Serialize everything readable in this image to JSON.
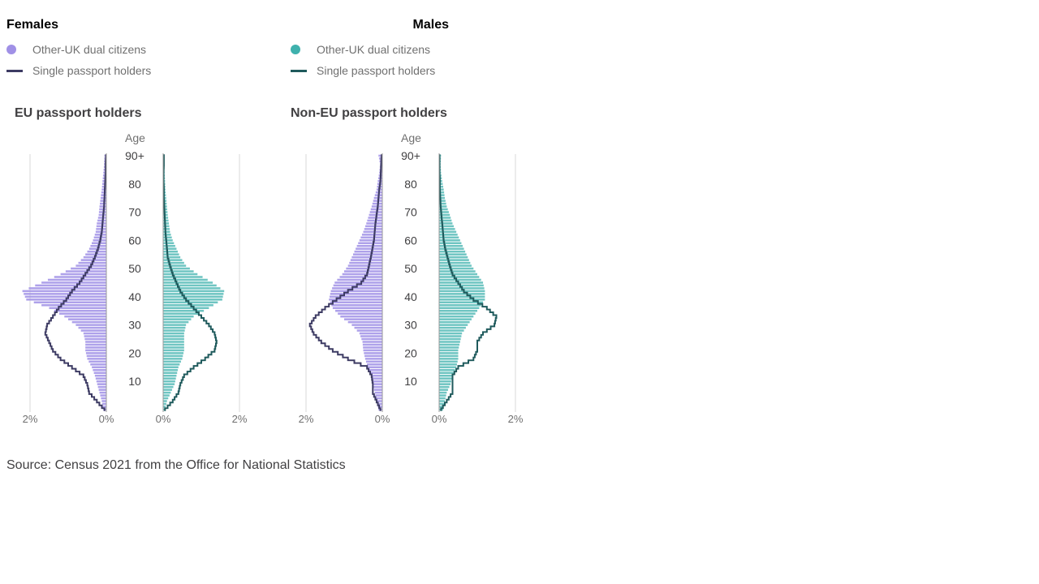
{
  "legend": {
    "females": {
      "title": "Females",
      "dual_label": "Other-UK dual citizens",
      "single_label": "Single passport holders",
      "dual_color": "#a090e6",
      "single_color": "#3d3b63"
    },
    "males": {
      "title": "Males",
      "dual_label": "Other-UK dual citizens",
      "single_label": "Single passport holders",
      "dual_color": "#3fb1ad",
      "single_color": "#1f5a5c"
    }
  },
  "source": "Source: Census 2021 from the Office for National Statistics",
  "chart_data": [
    {
      "type": "bar",
      "title": "EU passport holders",
      "ylabel": "Age",
      "age_ticks": [
        "10",
        "20",
        "30",
        "40",
        "50",
        "60",
        "70",
        "80",
        "90+"
      ],
      "x_ticks": [
        "2%",
        "0%"
      ],
      "x_ticks_right": [
        "0%",
        "2%"
      ],
      "xlim": [
        0,
        2
      ],
      "x": [
        0,
        3,
        6,
        9,
        12,
        15,
        18,
        21,
        24,
        27,
        30,
        33,
        36,
        39,
        42,
        45,
        48,
        51,
        54,
        57,
        60,
        63,
        66,
        69,
        72,
        75,
        78,
        81,
        84,
        87,
        90
      ],
      "series": [
        {
          "name": "Females Other-UK dual citizens",
          "values": [
            0.08,
            0.12,
            0.18,
            0.24,
            0.3,
            0.38,
            0.5,
            0.55,
            0.55,
            0.6,
            0.8,
            1.1,
            1.5,
            2.1,
            2.2,
            1.7,
            1.2,
            0.8,
            0.6,
            0.45,
            0.35,
            0.28,
            0.25,
            0.2,
            0.18,
            0.15,
            0.12,
            0.1,
            0.08,
            0.06,
            0.05
          ]
        },
        {
          "name": "Females Single passport holders",
          "values": [
            0.05,
            0.25,
            0.45,
            0.5,
            0.6,
            0.9,
            1.2,
            1.4,
            1.5,
            1.6,
            1.55,
            1.4,
            1.25,
            1.05,
            0.9,
            0.7,
            0.55,
            0.4,
            0.3,
            0.22,
            0.16,
            0.12,
            0.1,
            0.08,
            0.06,
            0.05,
            0.04,
            0.03,
            0.02,
            0.02,
            0.01
          ]
        },
        {
          "name": "Males Other-UK dual citizens",
          "values": [
            0.05,
            0.1,
            0.2,
            0.3,
            0.35,
            0.4,
            0.5,
            0.55,
            0.55,
            0.55,
            0.6,
            0.8,
            1.2,
            1.55,
            1.6,
            1.3,
            0.9,
            0.6,
            0.45,
            0.35,
            0.25,
            0.18,
            0.15,
            0.12,
            0.1,
            0.08,
            0.06,
            0.05,
            0.04,
            0.03,
            0.02
          ]
        },
        {
          "name": "Males Single passport holders",
          "values": [
            0.05,
            0.25,
            0.4,
            0.45,
            0.55,
            0.8,
            1.1,
            1.35,
            1.4,
            1.35,
            1.2,
            1.0,
            0.8,
            0.6,
            0.45,
            0.35,
            0.25,
            0.18,
            0.12,
            0.1,
            0.08,
            0.06,
            0.05,
            0.04,
            0.03,
            0.02,
            0.02,
            0.01,
            0.01,
            0.02,
            0.02
          ]
        }
      ]
    },
    {
      "type": "bar",
      "title": "Non-EU passport holders",
      "ylabel": "Age",
      "age_ticks": [
        "10",
        "20",
        "30",
        "40",
        "50",
        "60",
        "70",
        "80",
        "90+"
      ],
      "x_ticks": [
        "2%",
        "0%"
      ],
      "x_ticks_right": [
        "0%",
        "2%"
      ],
      "xlim": [
        0,
        2
      ],
      "x": [
        0,
        3,
        6,
        9,
        12,
        15,
        18,
        21,
        24,
        27,
        30,
        33,
        36,
        39,
        42,
        45,
        48,
        51,
        54,
        57,
        60,
        63,
        66,
        69,
        72,
        75,
        78,
        81,
        84,
        87,
        90
      ],
      "series": [
        {
          "name": "Females Other-UK dual citizens",
          "values": [
            0.1,
            0.15,
            0.2,
            0.25,
            0.3,
            0.38,
            0.45,
            0.5,
            0.52,
            0.6,
            0.8,
            1.1,
            1.3,
            1.4,
            1.35,
            1.25,
            1.05,
            0.9,
            0.8,
            0.7,
            0.6,
            0.5,
            0.42,
            0.35,
            0.28,
            0.22,
            0.15,
            0.12,
            0.08,
            0.06,
            0.1
          ]
        },
        {
          "name": "Females Single passport holders",
          "values": [
            0.05,
            0.15,
            0.25,
            0.25,
            0.28,
            0.4,
            0.9,
            1.3,
            1.6,
            1.8,
            1.9,
            1.75,
            1.5,
            1.2,
            0.9,
            0.55,
            0.4,
            0.35,
            0.3,
            0.26,
            0.22,
            0.2,
            0.18,
            0.15,
            0.12,
            0.1,
            0.08,
            0.05,
            0.04,
            0.03,
            0.02
          ]
        },
        {
          "name": "Males Other-UK dual citizens",
          "values": [
            0.1,
            0.15,
            0.2,
            0.3,
            0.35,
            0.45,
            0.5,
            0.5,
            0.55,
            0.6,
            0.75,
            0.9,
            1.05,
            1.2,
            1.2,
            1.15,
            1.0,
            0.85,
            0.75,
            0.65,
            0.55,
            0.45,
            0.35,
            0.28,
            0.2,
            0.15,
            0.12,
            0.08,
            0.05,
            0.04,
            0.05
          ]
        },
        {
          "name": "Males Single passport holders",
          "values": [
            0.05,
            0.2,
            0.35,
            0.35,
            0.35,
            0.5,
            0.9,
            1.0,
            1.0,
            1.15,
            1.45,
            1.5,
            1.25,
            0.9,
            0.65,
            0.5,
            0.35,
            0.28,
            0.22,
            0.16,
            0.12,
            0.1,
            0.08,
            0.06,
            0.04,
            0.03,
            0.02,
            0.02,
            0.01,
            0.01,
            0.01
          ]
        }
      ]
    }
  ]
}
